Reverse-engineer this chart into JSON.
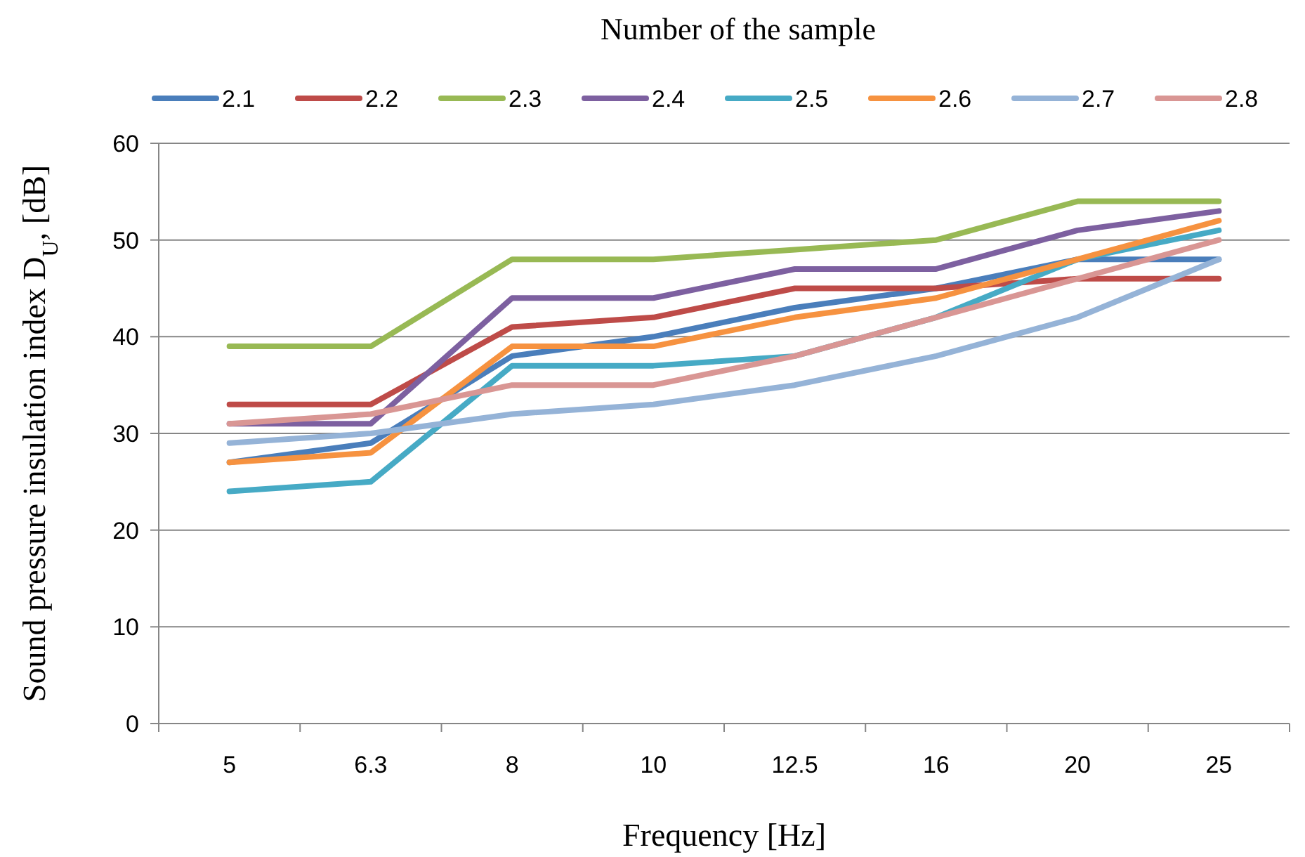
{
  "chart_data": {
    "type": "line",
    "legend_title": "Number of the sample",
    "xlabel": "Frequency [Hz]",
    "ylabel": "Sound pressure insulation index D$_{U}$, [dB]",
    "categories": [
      "5",
      "6.3",
      "8",
      "10",
      "12.5",
      "16",
      "20",
      "25"
    ],
    "ylim": [
      0,
      60
    ],
    "yticks": [
      0,
      10,
      20,
      30,
      40,
      50,
      60
    ],
    "grid": "y",
    "legend": "top",
    "marker": "none",
    "line_style": "solid",
    "series": [
      {
        "name": "2.1",
        "color": "#4a7ebb",
        "values": [
          27,
          29,
          38,
          40,
          43,
          45,
          48,
          48
        ]
      },
      {
        "name": "2.2",
        "color": "#be4b48",
        "values": [
          33,
          33,
          41,
          42,
          45,
          45,
          46,
          46
        ]
      },
      {
        "name": "2.3",
        "color": "#98b954",
        "values": [
          39,
          39,
          48,
          48,
          49,
          50,
          54,
          54
        ]
      },
      {
        "name": "2.4",
        "color": "#7d60a0",
        "values": [
          31,
          31,
          44,
          44,
          47,
          47,
          51,
          53
        ]
      },
      {
        "name": "2.5",
        "color": "#46aac5",
        "values": [
          24,
          25,
          37,
          37,
          38,
          42,
          48,
          51
        ]
      },
      {
        "name": "2.6",
        "color": "#f69240",
        "values": [
          27,
          28,
          39,
          39,
          42,
          44,
          48,
          52
        ]
      },
      {
        "name": "2.7",
        "color": "#95b3d7",
        "values": [
          29,
          30,
          32,
          33,
          35,
          38,
          42,
          48
        ]
      },
      {
        "name": "2.8",
        "color": "#d99694",
        "values": [
          31,
          32,
          35,
          35,
          38,
          42,
          46,
          50
        ]
      }
    ]
  }
}
